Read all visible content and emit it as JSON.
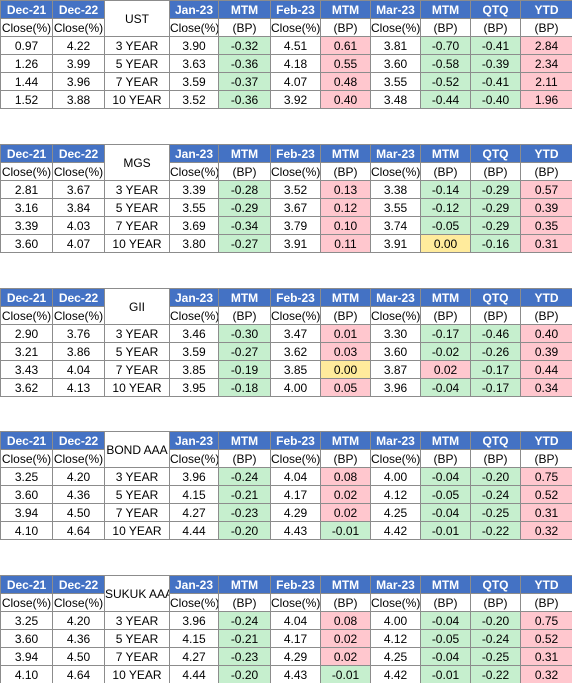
{
  "tables": [
    {
      "label": "UST",
      "header": [
        "Dec-21",
        "Dec-22",
        "Jan-23",
        "MTM",
        "Feb-23",
        "MTM",
        "Mar-23",
        "MTM",
        "QTQ",
        "YTD"
      ],
      "subheader": [
        "Close(%)",
        "Close(%)",
        "Close(%)",
        "(BP)",
        "Close(%)",
        "(BP)",
        "Close(%)",
        "(BP)",
        "(BP)",
        "(BP)"
      ],
      "rows": [
        [
          "0.97",
          "4.22",
          "3 YEAR",
          "3.90",
          "-0.32",
          "4.51",
          "0.61",
          "3.81",
          "-0.70",
          "-0.41",
          "2.84"
        ],
        [
          "1.26",
          "3.99",
          "5 YEAR",
          "3.63",
          "-0.36",
          "4.18",
          "0.55",
          "3.60",
          "-0.58",
          "-0.39",
          "2.34"
        ],
        [
          "1.44",
          "3.96",
          "7 YEAR",
          "3.59",
          "-0.37",
          "4.07",
          "0.48",
          "3.55",
          "-0.52",
          "-0.41",
          "2.11"
        ],
        [
          "1.52",
          "3.88",
          "10 YEAR",
          "3.52",
          "-0.36",
          "3.92",
          "0.40",
          "3.48",
          "-0.44",
          "-0.40",
          "1.96"
        ]
      ]
    },
    {
      "label": "MGS",
      "header": [
        "Dec-21",
        "Dec-22",
        "Jan-23",
        "MTM",
        "Feb-23",
        "MTM",
        "Mar-23",
        "MTM",
        "QTQ",
        "YTD"
      ],
      "subheader": [
        "Close(%)",
        "Close(%)",
        "Close(%)",
        "(BP)",
        "Close(%)",
        "(BP)",
        "Close(%)",
        "(BP)",
        "(BP)",
        "(BP)"
      ],
      "rows": [
        [
          "2.81",
          "3.67",
          "3 YEAR",
          "3.39",
          "-0.28",
          "3.52",
          "0.13",
          "3.38",
          "-0.14",
          "-0.29",
          "0.57"
        ],
        [
          "3.16",
          "3.84",
          "5 YEAR",
          "3.55",
          "-0.29",
          "3.67",
          "0.12",
          "3.55",
          "-0.12",
          "-0.29",
          "0.39"
        ],
        [
          "3.39",
          "4.03",
          "7 YEAR",
          "3.69",
          "-0.34",
          "3.79",
          "0.10",
          "3.74",
          "-0.05",
          "-0.29",
          "0.35"
        ],
        [
          "3.60",
          "4.07",
          "10 YEAR",
          "3.80",
          "-0.27",
          "3.91",
          "0.11",
          "3.91",
          "0.00",
          "-0.16",
          "0.31"
        ]
      ]
    },
    {
      "label": "GII",
      "header": [
        "Dec-21",
        "Dec-22",
        "Jan-23",
        "MTM",
        "Feb-23",
        "MTM",
        "Mar-23",
        "MTM",
        "QTQ",
        "YTD"
      ],
      "subheader": [
        "Close(%)",
        "Close(%)",
        "Close(%)",
        "(BP)",
        "Close(%)",
        "(BP)",
        "Close(%)",
        "(BP)",
        "(BP)",
        "(BP)"
      ],
      "rows": [
        [
          "2.90",
          "3.76",
          "3 YEAR",
          "3.46",
          "-0.30",
          "3.47",
          "0.01",
          "3.30",
          "-0.17",
          "-0.46",
          "0.40"
        ],
        [
          "3.21",
          "3.86",
          "5 YEAR",
          "3.59",
          "-0.27",
          "3.62",
          "0.03",
          "3.60",
          "-0.02",
          "-0.26",
          "0.39"
        ],
        [
          "3.43",
          "4.04",
          "7 YEAR",
          "3.85",
          "-0.19",
          "3.85",
          "0.00",
          "3.87",
          "0.02",
          "-0.17",
          "0.44"
        ],
        [
          "3.62",
          "4.13",
          "10 YEAR",
          "3.95",
          "-0.18",
          "4.00",
          "0.05",
          "3.96",
          "-0.04",
          "-0.17",
          "0.34"
        ]
      ]
    },
    {
      "label": "BOND AAA",
      "header": [
        "Dec-21",
        "Dec-22",
        "Jan-23",
        "MTM",
        "Feb-23",
        "MTM",
        "Mar-23",
        "MTM",
        "QTQ",
        "YTD"
      ],
      "subheader": [
        "Close(%)",
        "Close(%)",
        "Close(%)",
        "(BP)",
        "Close(%)",
        "(BP)",
        "Close(%)",
        "(BP)",
        "(BP)",
        "(BP)"
      ],
      "rows": [
        [
          "3.25",
          "4.20",
          "3 YEAR",
          "3.96",
          "-0.24",
          "4.04",
          "0.08",
          "4.00",
          "-0.04",
          "-0.20",
          "0.75"
        ],
        [
          "3.60",
          "4.36",
          "5 YEAR",
          "4.15",
          "-0.21",
          "4.17",
          "0.02",
          "4.12",
          "-0.05",
          "-0.24",
          "0.52"
        ],
        [
          "3.94",
          "4.50",
          "7 YEAR",
          "4.27",
          "-0.23",
          "4.29",
          "0.02",
          "4.25",
          "-0.04",
          "-0.25",
          "0.31"
        ],
        [
          "4.10",
          "4.64",
          "10 YEAR",
          "4.44",
          "-0.20",
          "4.43",
          "-0.01",
          "4.42",
          "-0.01",
          "-0.22",
          "0.32"
        ]
      ]
    },
    {
      "label": "SUKUK AAA",
      "header": [
        "Dec-21",
        "Dec-22",
        "Jan-23",
        "MTM",
        "Feb-23",
        "MTM",
        "Mar-23",
        "MTM",
        "QTQ",
        "YTD"
      ],
      "subheader": [
        "Close(%)",
        "Close(%)",
        "Close(%)",
        "(BP)",
        "Close(%)",
        "(BP)",
        "Close(%)",
        "(BP)",
        "(BP)",
        "(BP)"
      ],
      "rows": [
        [
          "3.25",
          "4.20",
          "3 YEAR",
          "3.96",
          "-0.24",
          "4.04",
          "0.08",
          "4.00",
          "-0.04",
          "-0.20",
          "0.75"
        ],
        [
          "3.60",
          "4.36",
          "5 YEAR",
          "4.15",
          "-0.21",
          "4.17",
          "0.02",
          "4.12",
          "-0.05",
          "-0.24",
          "0.52"
        ],
        [
          "3.94",
          "4.50",
          "7 YEAR",
          "4.27",
          "-0.23",
          "4.29",
          "0.02",
          "4.25",
          "-0.04",
          "-0.25",
          "0.31"
        ],
        [
          "4.10",
          "4.64",
          "10 YEAR",
          "4.44",
          "-0.20",
          "4.43",
          "-0.01",
          "4.42",
          "-0.01",
          "-0.22",
          "0.32"
        ]
      ]
    }
  ]
}
